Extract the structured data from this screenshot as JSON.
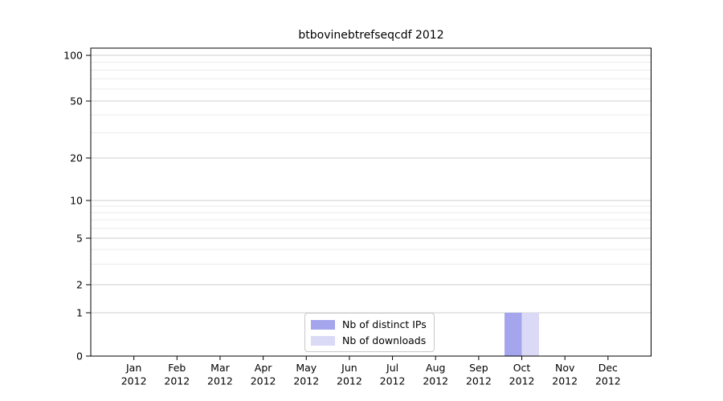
{
  "chart_data": {
    "type": "bar",
    "title": "btbovinebtrefseqcdf 2012",
    "x": {
      "months": [
        "Jan",
        "Feb",
        "Mar",
        "Apr",
        "May",
        "Jun",
        "Jul",
        "Aug",
        "Sep",
        "Oct",
        "Nov",
        "Dec"
      ],
      "year": "2012"
    },
    "y_axis": {
      "scale": "symlog",
      "major_ticks": [
        0,
        1,
        2,
        5,
        10,
        20,
        50,
        100
      ],
      "minor_ticks": [
        3,
        4,
        6,
        7,
        8,
        9,
        30,
        40,
        60,
        70,
        80,
        90
      ],
      "ylim": [
        0,
        100
      ],
      "grid": "on"
    },
    "series": [
      {
        "name": "Nb of distinct IPs",
        "color": "#a5a5ee",
        "values": [
          0,
          0,
          0,
          0,
          0,
          0,
          0,
          0,
          0,
          1,
          0,
          0
        ]
      },
      {
        "name": "Nb of downloads",
        "color": "#dadaf6",
        "values": [
          0,
          0,
          0,
          0,
          0,
          0,
          0,
          0,
          0,
          1,
          0,
          0
        ]
      }
    ],
    "legend": {
      "position": "lower center"
    }
  }
}
